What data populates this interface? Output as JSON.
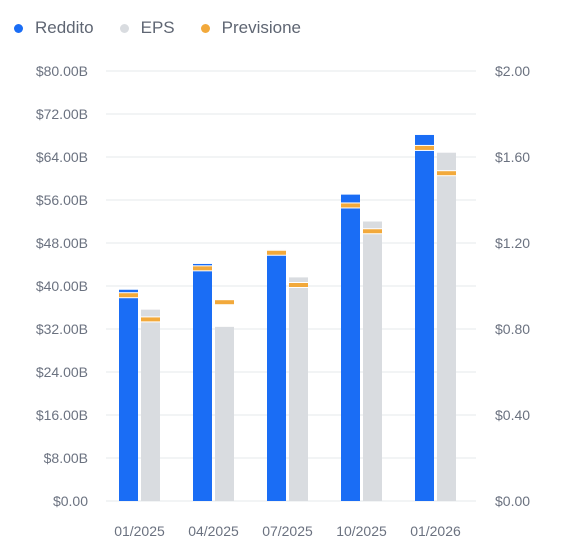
{
  "legend": [
    {
      "label": "Reddito",
      "color": "#1a6df5"
    },
    {
      "label": "EPS",
      "color": "#d9dce0"
    },
    {
      "label": "Previsione",
      "color": "#f2a93b"
    }
  ],
  "chart_data": {
    "type": "bar",
    "categories": [
      "01/2025",
      "04/2025",
      "07/2025",
      "10/2025",
      "01/2026"
    ],
    "series": [
      {
        "name": "Reddito",
        "axis": "left",
        "values": [
          39.3,
          44.1,
          46.7,
          57.0,
          68.1
        ],
        "forecast": [
          38.1,
          43.1,
          46.0,
          54.8,
          65.5
        ],
        "color": "#1a6df5"
      },
      {
        "name": "EPS",
        "axis": "right",
        "values": [
          0.89,
          0.81,
          1.04,
          1.3,
          1.62
        ],
        "forecast": [
          0.84,
          0.92,
          1.0,
          1.25,
          1.52
        ],
        "color": "#d9dce0"
      }
    ],
    "forecast_color": "#f2a93b",
    "y_left": {
      "ylim": [
        0,
        80
      ],
      "ticks": [
        "$0.00",
        "$8.00B",
        "$16.00B",
        "$24.00B",
        "$32.00B",
        "$40.00B",
        "$48.00B",
        "$56.00B",
        "$64.00B",
        "$72.00B",
        "$80.00B"
      ]
    },
    "y_right": {
      "ylim": [
        0,
        2
      ],
      "ticks": [
        "$0.00",
        "$0.40",
        "$0.80",
        "$1.20",
        "$1.60",
        "$2.00"
      ]
    },
    "grid": true,
    "legend_position": "top-left"
  }
}
